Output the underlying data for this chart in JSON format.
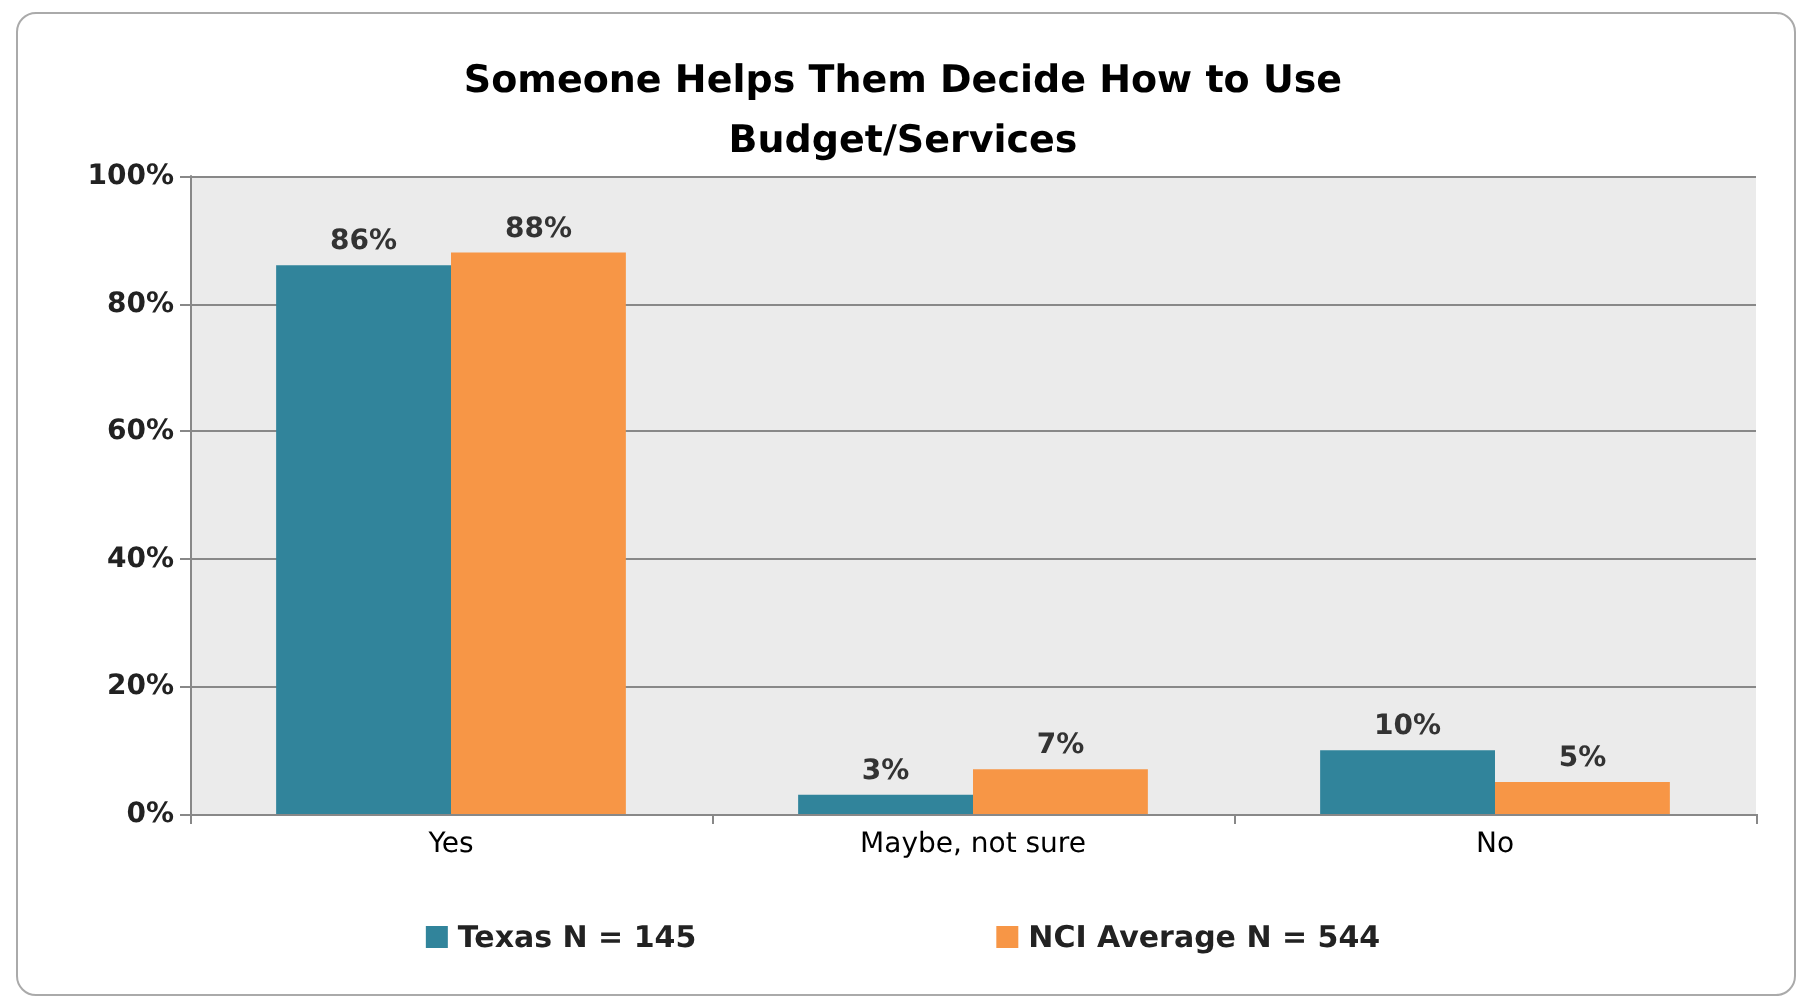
{
  "chart_data": {
    "type": "bar",
    "title": "Someone Helps Them Decide How to Use\nBudget/Services",
    "categories": [
      "Yes",
      "Maybe, not sure",
      "No"
    ],
    "series": [
      {
        "name": "Texas N = 145",
        "color": "#31849b",
        "values": [
          86,
          3,
          10
        ],
        "value_labels": [
          "86%",
          "3%",
          "10%"
        ]
      },
      {
        "name": "NCI Average N = 544",
        "color": "#f79646",
        "values": [
          88,
          7,
          5
        ],
        "value_labels": [
          "88%",
          "7%",
          "5%"
        ]
      }
    ],
    "ylim": [
      0,
      100
    ],
    "yticks": [
      {
        "value": 0,
        "label": "0%"
      },
      {
        "value": 20,
        "label": "20%"
      },
      {
        "value": 40,
        "label": "40%"
      },
      {
        "value": 60,
        "label": "60%"
      },
      {
        "value": 80,
        "label": "80%"
      },
      {
        "value": 100,
        "label": "100%"
      }
    ],
    "grid": "y",
    "legend": "bottom"
  }
}
